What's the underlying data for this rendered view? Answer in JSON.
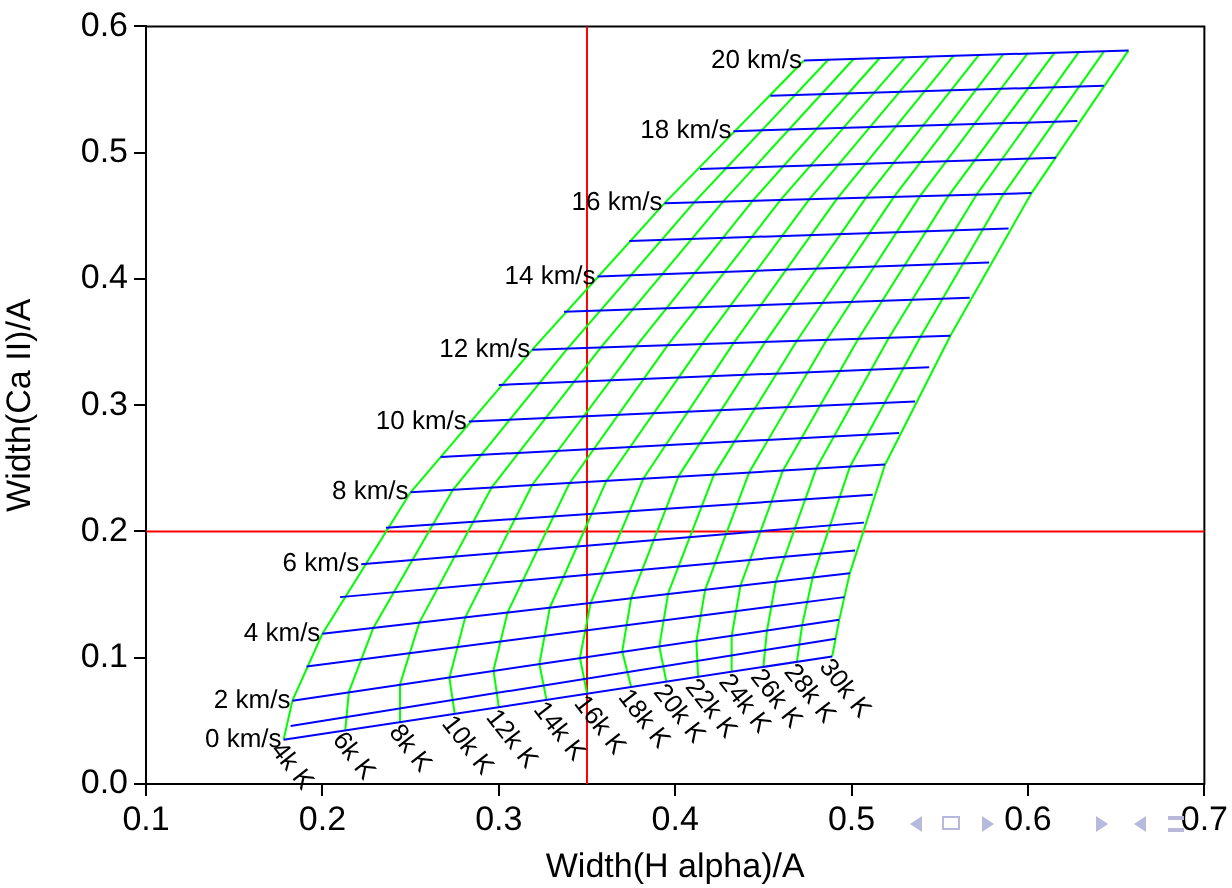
{
  "chart_data": {
    "type": "line",
    "xlabel": "Width(H alpha)/A",
    "ylabel": "Width(Ca II)/A",
    "xlim": [
      0.1,
      0.7
    ],
    "ylim": [
      0,
      0.6
    ],
    "xticks": [
      0.1,
      0.2,
      0.3,
      0.4,
      0.5,
      0.6,
      0.7
    ],
    "yticks": [
      {
        "value": 0,
        "label": "0.0"
      },
      0.1,
      0.2,
      0.3,
      0.4,
      0.5,
      0.6
    ],
    "grid": false,
    "legend": false,
    "marker": "none",
    "line_style": "solid",
    "ref_lines": [
      {
        "axis": "x",
        "value": 0.35,
        "color": "#ff0000"
      },
      {
        "axis": "y",
        "value": 0.2,
        "color": "#ff0000"
      }
    ],
    "series": [
      {
        "name": "0 km/s",
        "color": "#0000ff",
        "x": [
          0.178,
          0.489
        ],
        "values": [
          0.035,
          0.101
        ]
      },
      {
        "color": "#0000ff",
        "x": [
          0.182,
          0.491
        ],
        "values": [
          0.046,
          0.115
        ]
      },
      {
        "name": "2 km/s",
        "color": "#0000ff",
        "x": [
          0.183,
          0.493
        ],
        "values": [
          0.066,
          0.13
        ]
      },
      {
        "color": "#0000ff",
        "x": [
          0.191,
          0.496
        ],
        "values": [
          0.093,
          0.148
        ]
      },
      {
        "name": "4 km/s",
        "color": "#0000ff",
        "x": [
          0.2,
          0.499
        ],
        "values": [
          0.119,
          0.167
        ]
      },
      {
        "color": "#0000ff",
        "x": [
          0.21,
          0.502
        ],
        "values": [
          0.148,
          0.185
        ]
      },
      {
        "name": "6 km/s",
        "color": "#0000ff",
        "x": [
          0.222,
          0.507
        ],
        "values": [
          0.174,
          0.207
        ]
      },
      {
        "color": "#0000ff",
        "x": [
          0.236,
          0.512
        ],
        "values": [
          0.203,
          0.229
        ]
      },
      {
        "name": "8 km/s",
        "color": "#0000ff",
        "x": [
          0.25,
          0.519
        ],
        "values": [
          0.231,
          0.253
        ]
      },
      {
        "color": "#0000ff",
        "x": [
          0.267,
          0.527
        ],
        "values": [
          0.259,
          0.278
        ]
      },
      {
        "name": "10 km/s",
        "color": "#0000ff",
        "x": [
          0.283,
          0.536
        ],
        "values": [
          0.287,
          0.303
        ]
      },
      {
        "color": "#0000ff",
        "x": [
          0.3,
          0.544
        ],
        "values": [
          0.316,
          0.33
        ]
      },
      {
        "name": "12 km/s",
        "color": "#0000ff",
        "x": [
          0.319,
          0.556
        ],
        "values": [
          0.344,
          0.355
        ]
      },
      {
        "color": "#0000ff",
        "x": [
          0.337,
          0.567
        ],
        "values": [
          0.374,
          0.385
        ]
      },
      {
        "name": "14 km/s",
        "color": "#0000ff",
        "x": [
          0.356,
          0.578
        ],
        "values": [
          0.402,
          0.413
        ]
      },
      {
        "color": "#0000ff",
        "x": [
          0.374,
          0.589
        ],
        "values": [
          0.43,
          0.44
        ]
      },
      {
        "name": "16 km/s",
        "color": "#0000ff",
        "x": [
          0.394,
          0.602
        ],
        "values": [
          0.46,
          0.468
        ]
      },
      {
        "color": "#0000ff",
        "x": [
          0.414,
          0.616
        ],
        "values": [
          0.487,
          0.496
        ]
      },
      {
        "name": "18 km/s",
        "color": "#0000ff",
        "x": [
          0.433,
          0.628
        ],
        "values": [
          0.517,
          0.525
        ]
      },
      {
        "color": "#0000ff",
        "x": [
          0.454,
          0.643
        ],
        "values": [
          0.545,
          0.553
        ]
      },
      {
        "name": "20 km/s",
        "color": "#0000ff",
        "x": [
          0.473,
          0.657
        ],
        "values": [
          0.573,
          0.581
        ]
      },
      {
        "name": "4k K",
        "color": "#00ff00",
        "x": [
          0.178,
          0.183,
          0.2,
          0.25,
          0.319,
          0.394,
          0.473
        ],
        "values": [
          0.035,
          0.066,
          0.119,
          0.231,
          0.344,
          0.46,
          0.573
        ]
      },
      {
        "name": "6k K",
        "color": "#00ff00",
        "x": [
          0.213,
          0.215,
          0.229,
          0.274,
          0.339,
          0.411,
          0.487
        ],
        "values": [
          0.043,
          0.073,
          0.124,
          0.233,
          0.345,
          0.461,
          0.574
        ]
      },
      {
        "name": "8k K",
        "color": "#00ff00",
        "x": [
          0.245,
          0.244,
          0.255,
          0.296,
          0.358,
          0.427,
          0.501
        ],
        "values": [
          0.049,
          0.079,
          0.128,
          0.235,
          0.346,
          0.461,
          0.574
        ]
      },
      {
        "name": "10k K",
        "color": "#00ff00",
        "x": [
          0.275,
          0.272,
          0.281,
          0.319,
          0.378,
          0.444,
          0.516
        ],
        "values": [
          0.056,
          0.084,
          0.132,
          0.237,
          0.347,
          0.462,
          0.575
        ]
      },
      {
        "name": "12k K",
        "color": "#00ff00",
        "x": [
          0.3,
          0.297,
          0.305,
          0.34,
          0.396,
          0.46,
          0.53
        ],
        "values": [
          0.061,
          0.09,
          0.136,
          0.238,
          0.348,
          0.463,
          0.575
        ]
      },
      {
        "name": "14k K",
        "color": "#00ff00",
        "x": [
          0.327,
          0.323,
          0.329,
          0.361,
          0.415,
          0.476,
          0.544
        ],
        "values": [
          0.067,
          0.095,
          0.14,
          0.24,
          0.348,
          0.463,
          0.576
        ]
      },
      {
        "name": "16k K",
        "color": "#00ff00",
        "x": [
          0.35,
          0.346,
          0.352,
          0.382,
          0.433,
          0.492,
          0.558
        ],
        "values": [
          0.072,
          0.1,
          0.143,
          0.242,
          0.349,
          0.464,
          0.577
        ]
      },
      {
        "name": "18k K",
        "color": "#00ff00",
        "x": [
          0.375,
          0.37,
          0.375,
          0.402,
          0.451,
          0.508,
          0.572
        ],
        "values": [
          0.077,
          0.105,
          0.147,
          0.244,
          0.35,
          0.464,
          0.577
        ]
      },
      {
        "name": "20k K",
        "color": "#00ff00",
        "x": [
          0.395,
          0.391,
          0.396,
          0.422,
          0.469,
          0.524,
          0.586
        ],
        "values": [
          0.081,
          0.109,
          0.151,
          0.245,
          0.351,
          0.465,
          0.578
        ]
      },
      {
        "name": "22k K",
        "color": "#00ff00",
        "x": [
          0.413,
          0.412,
          0.417,
          0.442,
          0.486,
          0.539,
          0.6
        ],
        "values": [
          0.085,
          0.113,
          0.154,
          0.247,
          0.352,
          0.466,
          0.579
        ]
      },
      {
        "name": "24k K",
        "color": "#00ff00",
        "x": [
          0.432,
          0.432,
          0.437,
          0.461,
          0.504,
          0.555,
          0.615
        ],
        "values": [
          0.089,
          0.117,
          0.157,
          0.248,
          0.353,
          0.466,
          0.579
        ]
      },
      {
        "name": "26k K",
        "color": "#00ff00",
        "x": [
          0.45,
          0.452,
          0.457,
          0.48,
          0.521,
          0.571,
          0.629
        ],
        "values": [
          0.093,
          0.121,
          0.16,
          0.25,
          0.353,
          0.467,
          0.58
        ]
      },
      {
        "name": "28k K",
        "color": "#00ff00",
        "x": [
          0.469,
          0.472,
          0.478,
          0.499,
          0.539,
          0.586,
          0.643
        ],
        "values": [
          0.097,
          0.126,
          0.164,
          0.251,
          0.354,
          0.467,
          0.58
        ]
      },
      {
        "name": "30k K",
        "color": "#00ff00",
        "x": [
          0.489,
          0.493,
          0.499,
          0.519,
          0.556,
          0.602,
          0.657
        ],
        "values": [
          0.101,
          0.13,
          0.167,
          0.253,
          0.355,
          0.468,
          0.581
        ]
      }
    ]
  }
}
